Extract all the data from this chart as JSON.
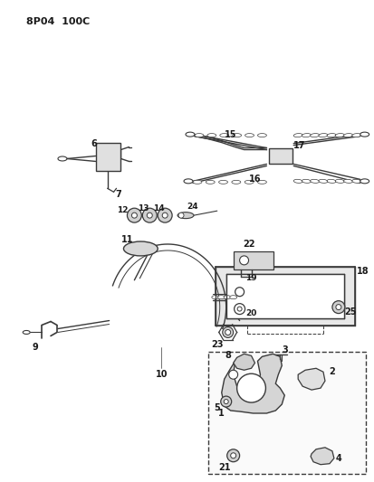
{
  "title": "8P04 100C",
  "background_color": "#ffffff",
  "line_color": "#3a3a3a",
  "text_color": "#1a1a1a",
  "fig_width": 4.14,
  "fig_height": 5.33,
  "dpi": 100
}
